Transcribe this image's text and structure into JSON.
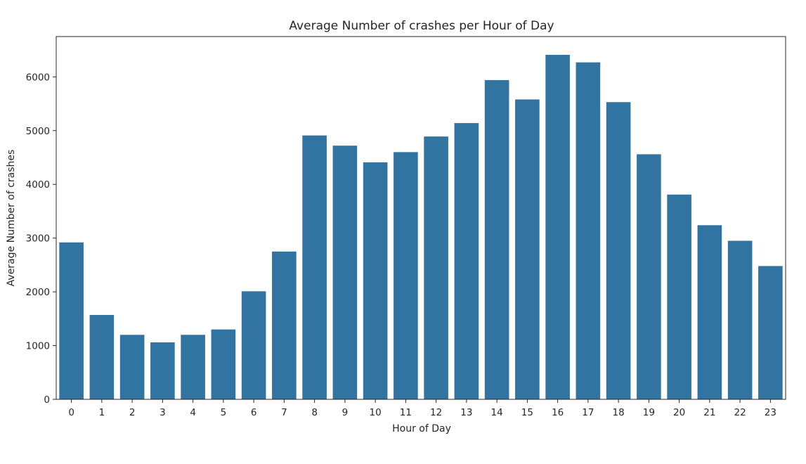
{
  "chart_data": {
    "type": "bar",
    "title": "Average Number of crashes per Hour of Day",
    "xlabel": "Hour of Day",
    "ylabel": "Average Number of crashes",
    "categories": [
      "0",
      "1",
      "2",
      "3",
      "4",
      "5",
      "6",
      "7",
      "8",
      "9",
      "10",
      "11",
      "12",
      "13",
      "14",
      "15",
      "16",
      "17",
      "18",
      "19",
      "20",
      "21",
      "22",
      "23"
    ],
    "values": [
      2920,
      1570,
      1200,
      1060,
      1200,
      1300,
      2010,
      2750,
      4910,
      4720,
      4410,
      4600,
      4890,
      5140,
      5940,
      5580,
      6410,
      6270,
      5530,
      4560,
      3810,
      3240,
      2950,
      2480
    ],
    "ylim": [
      0,
      6750
    ],
    "yticks": [
      0,
      1000,
      2000,
      3000,
      4000,
      5000,
      6000
    ],
    "ytick_labels": [
      "0",
      "1000",
      "2000",
      "3000",
      "4000",
      "5000",
      "6000"
    ],
    "grid": false,
    "bar_color": "#3274a1"
  }
}
